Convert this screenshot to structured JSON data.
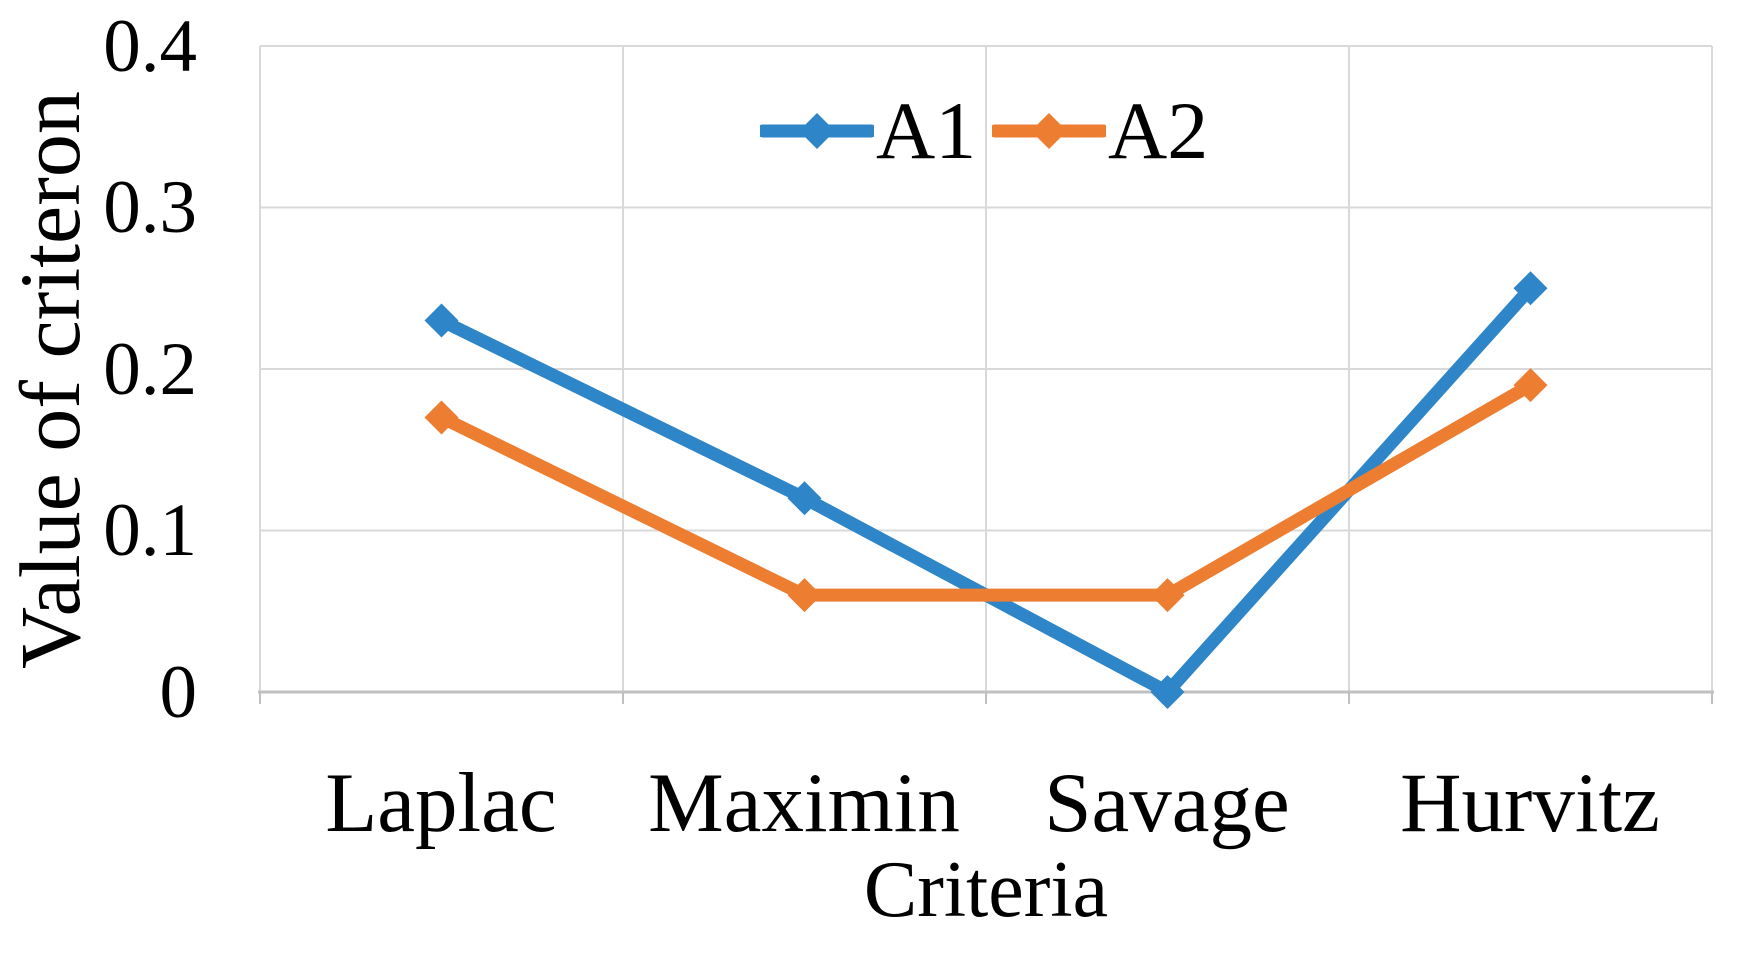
{
  "figure": {
    "background_color": "#FFFFFF",
    "text_color": "#000000"
  },
  "chart_data": {
    "type": "line",
    "title": "",
    "categories": [
      "Laplac",
      "Maximin",
      "Savage",
      "Hurvitz"
    ],
    "series": [
      {
        "name": "A1",
        "color": "#2E86C8",
        "marker": "diamond",
        "values": [
          0.23,
          0.12,
          0.0,
          0.25
        ]
      },
      {
        "name": "A2",
        "color": "#ED7D31",
        "marker": "diamond",
        "values": [
          0.17,
          0.06,
          0.06,
          0.19
        ]
      }
    ],
    "xlabel": "Criteria",
    "ylabel": "Value of criteron",
    "ylim": [
      0,
      0.4
    ],
    "yticks": [
      0,
      0.1,
      0.2,
      0.3,
      0.4
    ],
    "ytick_labels": [
      "0",
      "0.1",
      "0.2",
      "0.3",
      "0.4"
    ],
    "grid": true,
    "gridline_color": "#D9D9D9",
    "axis_line_color": "#C0C0C0",
    "legend_position": "top-center",
    "legend_entries": [
      "A1",
      "A2"
    ]
  }
}
